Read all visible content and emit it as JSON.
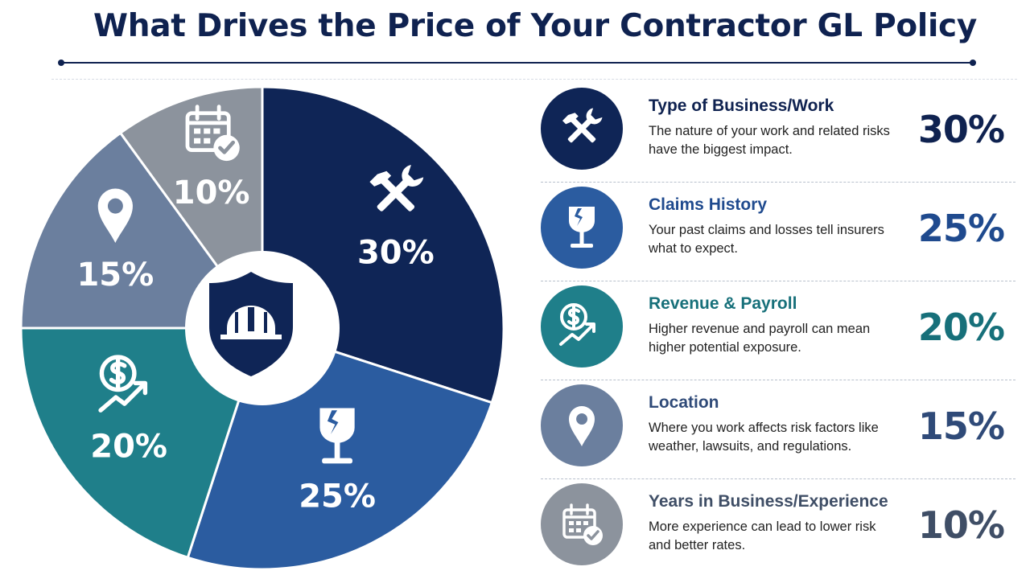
{
  "title": "What Drives the Price of Your Contractor GL Policy",
  "chart_data": {
    "type": "pie",
    "title": "What Drives the Price of Your Contractor GL Policy",
    "categories": [
      "Type of Business/Work",
      "Claims History",
      "Revenue & Payroll",
      "Location",
      "Years in Business/Experience"
    ],
    "values": [
      30,
      25,
      20,
      15,
      10
    ],
    "labels": [
      "30%",
      "25%",
      "20%",
      "15%",
      "10%"
    ],
    "colors": [
      "#0f2556",
      "#2b5ca0",
      "#1f7f8a",
      "#6b7f9e",
      "#8c939d"
    ],
    "center_icon": "shield-hardhat-icon"
  },
  "factors": [
    {
      "name": "Type of Business/Work",
      "description": "The nature of your work and related risks have the biggest impact.",
      "percent": "30%",
      "icon": "hammer-wrench-icon",
      "color": "#0f2556",
      "text_color": "#0f2250"
    },
    {
      "name": "Claims History",
      "description": "Your past claims and losses tell insurers what to expect.",
      "percent": "25%",
      "icon": "broken-glass-icon",
      "color": "#2b5ca0",
      "text_color": "#1f4a8e"
    },
    {
      "name": "Revenue & Payroll",
      "description": "Higher revenue and payroll can mean higher potential exposure.",
      "percent": "20%",
      "icon": "dollar-growth-icon",
      "color": "#1f7f8a",
      "text_color": "#17707a"
    },
    {
      "name": "Location",
      "description": "Where you work affects risk factors like weather, lawsuits, and regulations.",
      "percent": "15%",
      "icon": "map-pin-icon",
      "color": "#6b7f9e",
      "text_color": "#2f4a78"
    },
    {
      "name": "Years in Business/Experience",
      "description": "More experience can lead to lower risk and better rates.",
      "percent": "10%",
      "icon": "calendar-check-icon",
      "color": "#8c939d",
      "text_color": "#3f4e66"
    }
  ]
}
